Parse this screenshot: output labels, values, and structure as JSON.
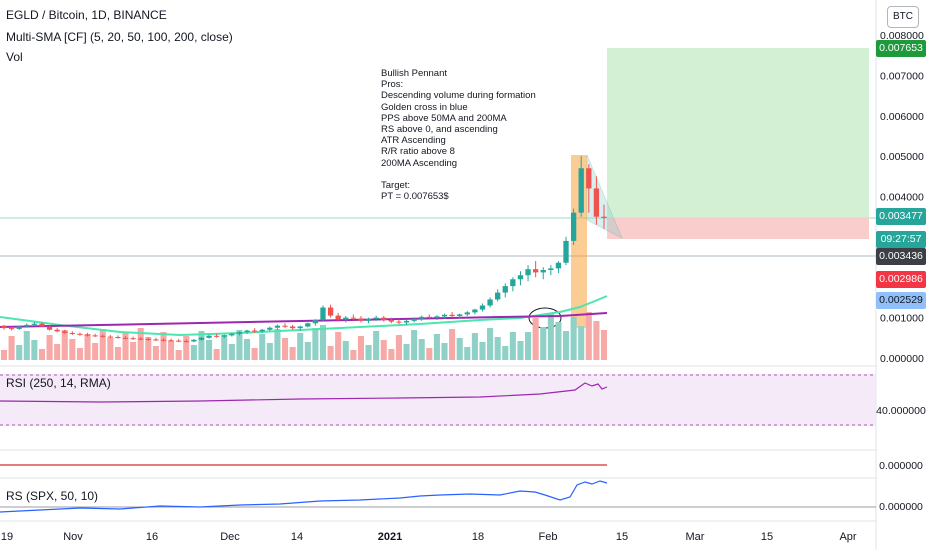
{
  "header": {
    "symbol_line": "EGLD / Bitcoin, 1D, BINANCE",
    "indicator_line": "Multi-SMA [CF] (5, 20, 50, 100, 200, close)",
    "volume_label": "Vol",
    "currency_button": "BTC"
  },
  "annotation": {
    "lines": [
      "Bullish Pennant",
      "Pros:",
      "Descending volume during formation",
      "Golden cross in blue",
      "PPS above 50MA and 200MA",
      "RS above 0, and ascending",
      "ATR Ascending",
      "R/R ratio above 8",
      "200MA Ascending",
      "",
      "Target:",
      "PT = 0.007653$"
    ]
  },
  "price_tags": [
    {
      "value": "0.007653",
      "bg": "#1e9a3c"
    },
    {
      "value": "0.003477",
      "bg": "#26a69a"
    },
    {
      "value": "09:27:57",
      "bg": "#26a69a"
    },
    {
      "value": "0.003436",
      "bg": "#3d3f47"
    },
    {
      "value": "0.002986",
      "bg": "#f23645"
    },
    {
      "value": "0.002529",
      "bg": "#90bff9",
      "fg": "#131722"
    }
  ],
  "panes": {
    "rsi_label": "RSI (250, 14, RMA)",
    "rsi_level": "40.000000",
    "zero_level": "0.000000",
    "rs_label": "RS (SPX, 50, 10)",
    "rs_level": "0.000000"
  },
  "colors": {
    "up": "#26a69a",
    "down": "#ef5350",
    "vol_up": "#8fd1c6",
    "vol_down": "#f7a9a7",
    "sma_teal": "#4ce6b0",
    "sma_purple": "#9c27b0",
    "position_profit": "#c8ecc9",
    "position_loss": "#f9c8c8",
    "rs_line": "#2962ff",
    "pattern_box": "#f7a23c"
  },
  "chart_data": {
    "type": "candlestick",
    "y_ticks": [
      "0.008000",
      "0.007000",
      "0.006000",
      "0.005000",
      "0.004000",
      "0.001000",
      "0.000000"
    ],
    "ylim": [
      0,
      0.0082
    ],
    "x_ticks": [
      "19",
      "Nov",
      "16",
      "Dec",
      "14",
      "2021",
      "18",
      "Feb",
      "15",
      "Mar",
      "15",
      "Apr"
    ],
    "candles": [
      [
        0.0008,
        0.00082,
        0.0007,
        0.00074
      ],
      [
        0.00074,
        0.00078,
        0.00068,
        0.00072
      ],
      [
        0.00072,
        0.0008,
        0.0007,
        0.00078
      ],
      [
        0.00078,
        0.00086,
        0.00075,
        0.00082
      ],
      [
        0.00082,
        0.0009,
        0.00079,
        0.00085
      ],
      [
        0.00085,
        0.00088,
        0.00076,
        0.00078
      ],
      [
        0.00078,
        0.0008,
        0.00068,
        0.0007
      ],
      [
        0.0007,
        0.00074,
        0.00064,
        0.00066
      ],
      [
        0.00066,
        0.0007,
        0.0006,
        0.00062
      ],
      [
        0.00062,
        0.00066,
        0.00057,
        0.0006
      ],
      [
        0.0006,
        0.00063,
        0.00055,
        0.00058
      ],
      [
        0.00058,
        0.00062,
        0.00053,
        0.00056
      ],
      [
        0.00056,
        0.0006,
        0.00052,
        0.00055
      ],
      [
        0.00055,
        0.00058,
        0.0005,
        0.00053
      ],
      [
        0.00053,
        0.00057,
        0.00049,
        0.00052
      ],
      [
        0.00052,
        0.00056,
        0.00048,
        0.0005
      ],
      [
        0.0005,
        0.00054,
        0.00046,
        0.00049
      ],
      [
        0.00049,
        0.00053,
        0.00045,
        0.00048
      ],
      [
        0.00048,
        0.00052,
        0.00044,
        0.00047
      ],
      [
        0.00047,
        0.00051,
        0.00043,
        0.00046
      ],
      [
        0.00046,
        0.0005,
        0.00042,
        0.00045
      ],
      [
        0.00045,
        0.00049,
        0.00041,
        0.00044
      ],
      [
        0.00044,
        0.00048,
        0.0004,
        0.00043
      ],
      [
        0.00043,
        0.00047,
        0.00039,
        0.00042
      ],
      [
        0.00042,
        0.00046,
        0.00038,
        0.00041
      ],
      [
        0.00041,
        0.00047,
        0.00039,
        0.00045
      ],
      [
        0.00045,
        0.00052,
        0.00043,
        0.0005
      ],
      [
        0.0005,
        0.00058,
        0.00048,
        0.00055
      ],
      [
        0.00055,
        0.0006,
        0.0005,
        0.00053
      ],
      [
        0.00053,
        0.00058,
        0.00049,
        0.00056
      ],
      [
        0.00056,
        0.00062,
        0.00053,
        0.0006
      ],
      [
        0.0006,
        0.00066,
        0.00056,
        0.00064
      ],
      [
        0.00064,
        0.0007,
        0.0006,
        0.00068
      ],
      [
        0.00068,
        0.00074,
        0.00062,
        0.00066
      ],
      [
        0.00066,
        0.00072,
        0.00062,
        0.0007
      ],
      [
        0.0007,
        0.00078,
        0.00066,
        0.00075
      ],
      [
        0.00075,
        0.00083,
        0.0007,
        0.0008
      ],
      [
        0.0008,
        0.00086,
        0.00074,
        0.00078
      ],
      [
        0.00078,
        0.00082,
        0.0007,
        0.00074
      ],
      [
        0.00074,
        0.0008,
        0.00068,
        0.00078
      ],
      [
        0.00078,
        0.00088,
        0.00076,
        0.00086
      ],
      [
        0.00086,
        0.00096,
        0.0008,
        0.00094
      ],
      [
        0.00094,
        0.0013,
        0.0009,
        0.00125
      ],
      [
        0.00125,
        0.00132,
        0.001,
        0.00105
      ],
      [
        0.00105,
        0.00112,
        0.0009,
        0.00095
      ],
      [
        0.00095,
        0.00104,
        0.00088,
        0.001
      ],
      [
        0.001,
        0.00108,
        0.00094,
        0.00098
      ],
      [
        0.00098,
        0.00104,
        0.00088,
        0.00092
      ],
      [
        0.00092,
        0.001,
        0.00086,
        0.00097
      ],
      [
        0.00097,
        0.00105,
        0.00092,
        0.001
      ],
      [
        0.001,
        0.00104,
        0.0009,
        0.00094
      ],
      [
        0.00094,
        0.001,
        0.00086,
        0.0009
      ],
      [
        0.0009,
        0.00096,
        0.00084,
        0.00088
      ],
      [
        0.00088,
        0.00095,
        0.00082,
        0.00092
      ],
      [
        0.00092,
        0.001,
        0.00088,
        0.00097
      ],
      [
        0.00097,
        0.00105,
        0.00092,
        0.00102
      ],
      [
        0.00102,
        0.00108,
        0.00095,
        0.001
      ],
      [
        0.001,
        0.00106,
        0.00094,
        0.00103
      ],
      [
        0.00103,
        0.0011,
        0.00098,
        0.00107
      ],
      [
        0.00107,
        0.00114,
        0.001,
        0.00104
      ],
      [
        0.00104,
        0.0011,
        0.00098,
        0.00108
      ],
      [
        0.00108,
        0.00116,
        0.00104,
        0.00113
      ],
      [
        0.00113,
        0.00122,
        0.00108,
        0.0012
      ],
      [
        0.0012,
        0.00135,
        0.00115,
        0.0013
      ],
      [
        0.0013,
        0.0015,
        0.00125,
        0.00145
      ],
      [
        0.00145,
        0.0017,
        0.0014,
        0.00162
      ],
      [
        0.00162,
        0.00185,
        0.0015,
        0.00178
      ],
      [
        0.00178,
        0.002,
        0.00165,
        0.00195
      ],
      [
        0.00195,
        0.00215,
        0.0018,
        0.00205
      ],
      [
        0.00205,
        0.0023,
        0.0019,
        0.0022
      ],
      [
        0.0022,
        0.0024,
        0.002,
        0.00212
      ],
      [
        0.00212,
        0.00225,
        0.00195,
        0.00218
      ],
      [
        0.00218,
        0.0023,
        0.00205,
        0.00222
      ],
      [
        0.00222,
        0.0024,
        0.0021,
        0.00236
      ],
      [
        0.00236,
        0.003,
        0.0023,
        0.0029
      ],
      [
        0.0029,
        0.0037,
        0.0028,
        0.0036
      ],
      [
        0.0036,
        0.005,
        0.0035,
        0.0047
      ],
      [
        0.0047,
        0.0048,
        0.0036,
        0.0042
      ],
      [
        0.0042,
        0.0045,
        0.0033,
        0.0035
      ],
      [
        0.0035,
        0.0038,
        0.0032,
        0.00347
      ]
    ],
    "position": {
      "entry": 0.003477,
      "target": 0.007653,
      "stop": 0.002986
    }
  }
}
